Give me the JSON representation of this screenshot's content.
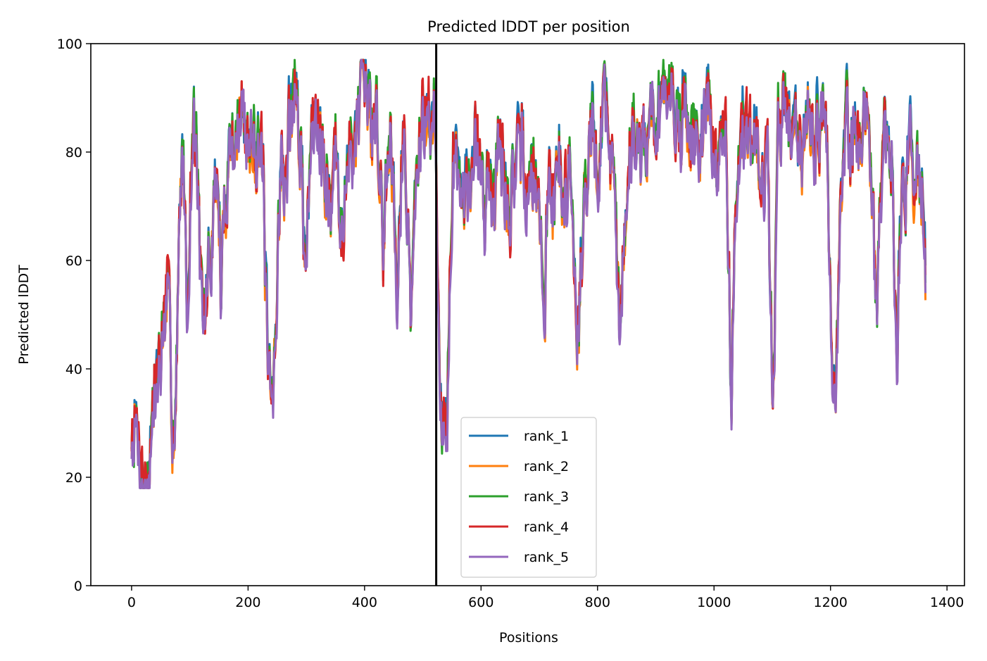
{
  "chart_data": {
    "type": "line",
    "title": "Predicted lDDT per position",
    "xlabel": "Positions",
    "ylabel": "Predicted lDDT",
    "xlim": [
      -70,
      1430
    ],
    "ylim": [
      0,
      100
    ],
    "x_ticks": [
      0,
      200,
      400,
      600,
      800,
      1000,
      1200,
      1400
    ],
    "y_ticks": [
      0,
      20,
      40,
      60,
      80,
      100
    ],
    "grid": false,
    "legend_position": "lower-center",
    "vertical_line": {
      "x": 523,
      "color": "#000000"
    },
    "series_length": 1364,
    "base_profile": [
      [
        0,
        27
      ],
      [
        6,
        30
      ],
      [
        12,
        26
      ],
      [
        18,
        21
      ],
      [
        24,
        19
      ],
      [
        30,
        22
      ],
      [
        38,
        32
      ],
      [
        44,
        40
      ],
      [
        50,
        44
      ],
      [
        56,
        48
      ],
      [
        62,
        52
      ],
      [
        66,
        45
      ],
      [
        70,
        32
      ],
      [
        74,
        28
      ],
      [
        78,
        45
      ],
      [
        82,
        68
      ],
      [
        86,
        82
      ],
      [
        92,
        72
      ],
      [
        96,
        48
      ],
      [
        100,
        70
      ],
      [
        106,
        86
      ],
      [
        112,
        80
      ],
      [
        118,
        56
      ],
      [
        122,
        46
      ],
      [
        126,
        50
      ],
      [
        132,
        58
      ],
      [
        138,
        62
      ],
      [
        144,
        78
      ],
      [
        150,
        70
      ],
      [
        154,
        52
      ],
      [
        160,
        72
      ],
      [
        170,
        83
      ],
      [
        180,
        84
      ],
      [
        190,
        88
      ],
      [
        200,
        82
      ],
      [
        210,
        86
      ],
      [
        220,
        85
      ],
      [
        226,
        72
      ],
      [
        232,
        48
      ],
      [
        236,
        34
      ],
      [
        242,
        32
      ],
      [
        248,
        48
      ],
      [
        252,
        72
      ],
      [
        258,
        80
      ],
      [
        262,
        70
      ],
      [
        270,
        85
      ],
      [
        280,
        91
      ],
      [
        288,
        85
      ],
      [
        296,
        63
      ],
      [
        302,
        70
      ],
      [
        310,
        83
      ],
      [
        320,
        90
      ],
      [
        330,
        85
      ],
      [
        336,
        76
      ],
      [
        342,
        70
      ],
      [
        350,
        80
      ],
      [
        358,
        66
      ],
      [
        366,
        73
      ],
      [
        374,
        78
      ],
      [
        380,
        84
      ],
      [
        390,
        86
      ],
      [
        400,
        88
      ],
      [
        410,
        86
      ],
      [
        420,
        90
      ],
      [
        428,
        74
      ],
      [
        432,
        58
      ],
      [
        436,
        75
      ],
      [
        444,
        84
      ],
      [
        450,
        76
      ],
      [
        456,
        58
      ],
      [
        462,
        78
      ],
      [
        468,
        84
      ],
      [
        474,
        70
      ],
      [
        480,
        48
      ],
      [
        486,
        68
      ],
      [
        492,
        80
      ],
      [
        500,
        88
      ],
      [
        508,
        84
      ],
      [
        514,
        90
      ],
      [
        520,
        88
      ],
      [
        524,
        70
      ],
      [
        530,
        40
      ],
      [
        534,
        32
      ],
      [
        538,
        28
      ],
      [
        542,
        34
      ],
      [
        546,
        60
      ],
      [
        552,
        80
      ],
      [
        560,
        76
      ],
      [
        570,
        78
      ],
      [
        580,
        72
      ],
      [
        590,
        80
      ],
      [
        600,
        74
      ],
      [
        606,
        65
      ],
      [
        612,
        80
      ],
      [
        620,
        72
      ],
      [
        630,
        82
      ],
      [
        640,
        76
      ],
      [
        650,
        68
      ],
      [
        658,
        80
      ],
      [
        666,
        74
      ],
      [
        672,
        82
      ],
      [
        680,
        70
      ],
      [
        688,
        76
      ],
      [
        696,
        78
      ],
      [
        704,
        60
      ],
      [
        708,
        47
      ],
      [
        712,
        65
      ],
      [
        718,
        78
      ],
      [
        726,
        74
      ],
      [
        734,
        82
      ],
      [
        742,
        68
      ],
      [
        750,
        80
      ],
      [
        758,
        70
      ],
      [
        764,
        52
      ],
      [
        768,
        46
      ],
      [
        772,
        60
      ],
      [
        780,
        74
      ],
      [
        788,
        84
      ],
      [
        794,
        82
      ],
      [
        800,
        76
      ],
      [
        806,
        88
      ],
      [
        814,
        90
      ],
      [
        822,
        80
      ],
      [
        830,
        70
      ],
      [
        836,
        55
      ],
      [
        840,
        44
      ],
      [
        846,
        65
      ],
      [
        852,
        80
      ],
      [
        860,
        84
      ],
      [
        870,
        82
      ],
      [
        880,
        86
      ],
      [
        890,
        84
      ],
      [
        900,
        88
      ],
      [
        910,
        90
      ],
      [
        920,
        86
      ],
      [
        930,
        90
      ],
      [
        940,
        84
      ],
      [
        950,
        88
      ],
      [
        960,
        82
      ],
      [
        970,
        86
      ],
      [
        980,
        84
      ],
      [
        990,
        88
      ],
      [
        1000,
        80
      ],
      [
        1006,
        75
      ],
      [
        1012,
        86
      ],
      [
        1020,
        82
      ],
      [
        1026,
        55
      ],
      [
        1030,
        37
      ],
      [
        1034,
        58
      ],
      [
        1040,
        80
      ],
      [
        1050,
        86
      ],
      [
        1060,
        78
      ],
      [
        1070,
        84
      ],
      [
        1080,
        78
      ],
      [
        1086,
        66
      ],
      [
        1092,
        84
      ],
      [
        1096,
        58
      ],
      [
        1100,
        35
      ],
      [
        1104,
        50
      ],
      [
        1110,
        85
      ],
      [
        1120,
        90
      ],
      [
        1130,
        86
      ],
      [
        1140,
        88
      ],
      [
        1150,
        82
      ],
      [
        1160,
        90
      ],
      [
        1170,
        86
      ],
      [
        1180,
        82
      ],
      [
        1190,
        88
      ],
      [
        1196,
        76
      ],
      [
        1200,
        52
      ],
      [
        1204,
        36
      ],
      [
        1208,
        31
      ],
      [
        1212,
        42
      ],
      [
        1218,
        75
      ],
      [
        1226,
        86
      ],
      [
        1234,
        80
      ],
      [
        1242,
        88
      ],
      [
        1250,
        82
      ],
      [
        1258,
        86
      ],
      [
        1266,
        82
      ],
      [
        1272,
        74
      ],
      [
        1276,
        60
      ],
      [
        1280,
        52
      ],
      [
        1286,
        78
      ],
      [
        1294,
        82
      ],
      [
        1300,
        74
      ],
      [
        1306,
        80
      ],
      [
        1310,
        58
      ],
      [
        1314,
        42
      ],
      [
        1318,
        62
      ],
      [
        1324,
        80
      ],
      [
        1330,
        76
      ],
      [
        1336,
        82
      ],
      [
        1344,
        76
      ],
      [
        1352,
        78
      ],
      [
        1358,
        72
      ],
      [
        1363,
        65
      ]
    ],
    "series": [
      {
        "name": "rank_1",
        "color": "#1f77b4",
        "seed": 11,
        "offset": 0.8
      },
      {
        "name": "rank_2",
        "color": "#ff7f0e",
        "seed": 23,
        "offset": -0.9
      },
      {
        "name": "rank_3",
        "color": "#2ca02c",
        "seed": 37,
        "offset": 0.6
      },
      {
        "name": "rank_4",
        "color": "#d62728",
        "seed": 41,
        "offset": 0.2
      },
      {
        "name": "rank_5",
        "color": "#9467bd",
        "seed": 53,
        "offset": -1.2
      }
    ]
  }
}
